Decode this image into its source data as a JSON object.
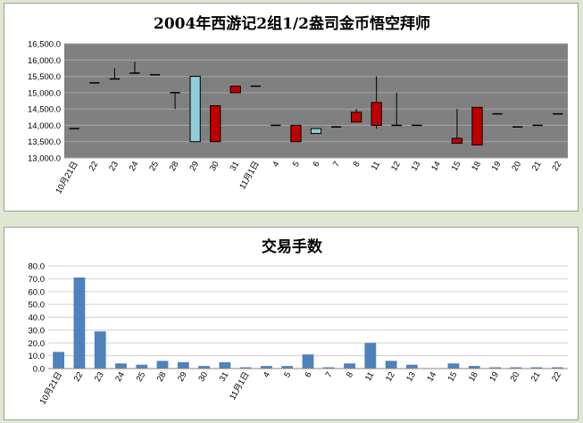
{
  "chart_data": [
    {
      "type": "candlestick",
      "title": "2004年西游记2组1/2盎司金币悟空拜师",
      "ylim": [
        13000,
        16500
      ],
      "yticks": [
        "16,500.0",
        "16,000.0",
        "15,500.0",
        "15,000.0",
        "14,500.0",
        "14,000.0",
        "13,500.0",
        "13,000.0"
      ],
      "grid": true,
      "colors": {
        "plot_bg": "#808080",
        "grid": "#a6a6a6",
        "up": "#92cddc",
        "down": "#c00000",
        "wick": "#000000"
      },
      "categories": [
        "10月21日",
        "22",
        "23",
        "24",
        "25",
        "28",
        "29",
        "30",
        "31",
        "11月1日",
        "4",
        "5",
        "6",
        "7",
        "8",
        "11",
        "12",
        "13",
        "14",
        "15",
        "18",
        "19",
        "20",
        "21",
        "22"
      ],
      "series": [
        {
          "values": [
            {
              "open": 13900,
              "high": 13900,
              "low": 13900,
              "close": 13900
            },
            {
              "open": 15300,
              "high": 15300,
              "low": 15300,
              "close": 15300
            },
            {
              "open": 15420,
              "high": 15750,
              "low": 15420,
              "close": 15420
            },
            {
              "open": 15600,
              "high": 15950,
              "low": 15600,
              "close": 15600
            },
            {
              "open": 15550,
              "high": 15550,
              "low": 15550,
              "close": 15550
            },
            {
              "open": 15000,
              "high": 15000,
              "low": 14500,
              "close": 15000
            },
            {
              "open": 13500,
              "high": 15500,
              "low": 13500,
              "close": 15500
            },
            {
              "open": 14600,
              "high": 14600,
              "low": 13500,
              "close": 13500
            },
            {
              "open": 15200,
              "high": 15200,
              "low": 15000,
              "close": 15000
            },
            {
              "open": 15200,
              "high": 15200,
              "low": 15200,
              "close": 15200
            },
            {
              "open": 14000,
              "high": 14000,
              "low": 14000,
              "close": 14000
            },
            {
              "open": 14000,
              "high": 14000,
              "low": 13500,
              "close": 13500
            },
            {
              "open": 13750,
              "high": 13900,
              "low": 13750,
              "close": 13900
            },
            {
              "open": 13950,
              "high": 13950,
              "low": 13950,
              "close": 13950
            },
            {
              "open": 14400,
              "high": 14500,
              "low": 14100,
              "close": 14100
            },
            {
              "open": 14700,
              "high": 15500,
              "low": 13900,
              "close": 14000
            },
            {
              "open": 14000,
              "high": 15000,
              "low": 14000,
              "close": 14000
            },
            {
              "open": 14000,
              "high": 14000,
              "low": 14000,
              "close": 14000
            },
            null,
            {
              "open": 13600,
              "high": 14500,
              "low": 13450,
              "close": 13450
            },
            {
              "open": 14550,
              "high": 14550,
              "low": 13400,
              "close": 13400
            },
            {
              "open": 14350,
              "high": 14350,
              "low": 14350,
              "close": 14350
            },
            {
              "open": 13950,
              "high": 13950,
              "low": 13950,
              "close": 13950
            },
            {
              "open": 14000,
              "high": 14000,
              "low": 14000,
              "close": 14000
            },
            {
              "open": 14350,
              "high": 14350,
              "low": 14350,
              "close": 14350
            }
          ]
        }
      ]
    },
    {
      "type": "bar",
      "title": "交易手数",
      "ylim": [
        0,
        80
      ],
      "yticks": [
        "80.0",
        "70.0",
        "60.0",
        "50.0",
        "40.0",
        "30.0",
        "20.0",
        "10.0",
        "0.0"
      ],
      "grid": true,
      "colors": {
        "bar": "#4f81bd",
        "grid": "#d0d0d0"
      },
      "categories": [
        "10月21日",
        "22",
        "23",
        "24",
        "25",
        "28",
        "29",
        "30",
        "31",
        "11月1日",
        "4",
        "5",
        "6",
        "7",
        "8",
        "11",
        "12",
        "13",
        "14",
        "15",
        "18",
        "19",
        "20",
        "21",
        "22"
      ],
      "series": [
        {
          "values": [
            13,
            71,
            29,
            4,
            3,
            6,
            5,
            2,
            5,
            1,
            2,
            2,
            11,
            1,
            4,
            20,
            6,
            3,
            0,
            4,
            2,
            1,
            1,
            1,
            1
          ]
        }
      ]
    }
  ]
}
